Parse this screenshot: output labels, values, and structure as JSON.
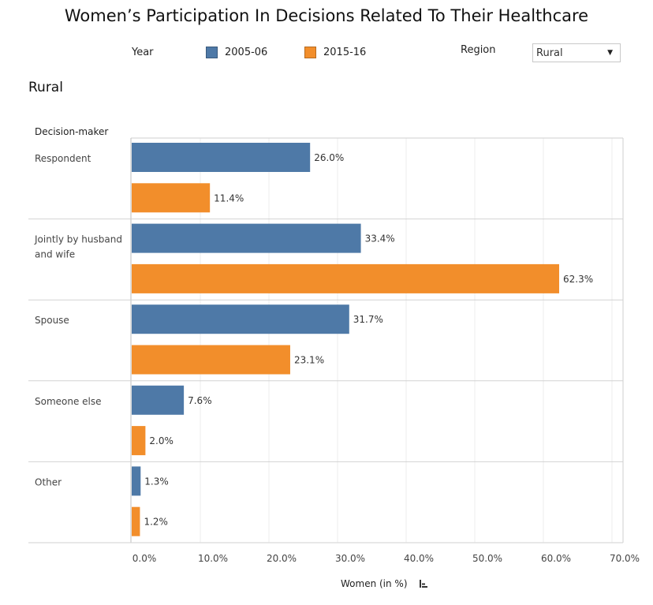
{
  "chart_data": {
    "type": "bar",
    "orientation": "horizontal",
    "title": "Women’s Participation In Decisions Related To Their Healthcare",
    "subtitle": "Rural",
    "category_axis_title": "Decision-maker",
    "xlabel": "Women (in %)",
    "xlim": [
      0,
      70
    ],
    "xticks": [
      "0.0%",
      "10.0%",
      "20.0%",
      "30.0%",
      "40.0%",
      "50.0%",
      "60.0%",
      "70.0%"
    ],
    "categories": [
      {
        "name": "Respondent",
        "lines": [
          "Respondent"
        ]
      },
      {
        "name": "Jointly by husband and wife",
        "lines": [
          "Jointly by husband",
          "and wife"
        ]
      },
      {
        "name": "Spouse",
        "lines": [
          "Spouse"
        ]
      },
      {
        "name": "Someone else",
        "lines": [
          "Someone else"
        ]
      },
      {
        "name": "Other",
        "lines": [
          "Other"
        ]
      }
    ],
    "series": [
      {
        "name": "2005-06",
        "color": "#4e79a7",
        "values": [
          26.0,
          33.4,
          31.7,
          7.6,
          1.3
        ],
        "labels": [
          "26.0%",
          "33.4%",
          "31.7%",
          "7.6%",
          "1.3%"
        ]
      },
      {
        "name": "2015-16",
        "color": "#f28e2b",
        "values": [
          11.4,
          62.3,
          23.1,
          2.0,
          1.2
        ],
        "labels": [
          "11.4%",
          "62.3%",
          "23.1%",
          "2.0%",
          "1.2%"
        ]
      }
    ]
  },
  "legend": {
    "year_label": "Year",
    "items": [
      {
        "label": "2005-06",
        "color": "#4e79a7"
      },
      {
        "label": "2015-16",
        "color": "#f28e2b"
      }
    ]
  },
  "filter": {
    "region_label": "Region",
    "selected": "Rural",
    "caret": "▼"
  }
}
